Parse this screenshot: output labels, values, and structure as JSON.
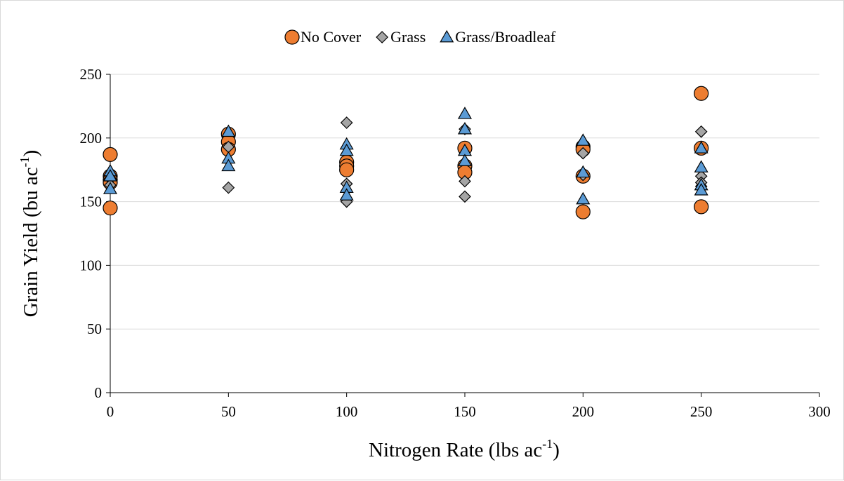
{
  "chart_data": {
    "type": "scatter",
    "title": "",
    "xlabel": "Nitrogen Rate (lbs ac",
    "xlabel_sup": "-1",
    "xlabel_end": ")",
    "ylabel": "Grain Yield (bu ac",
    "ylabel_sup": "-1",
    "ylabel_end": ")",
    "xlim": [
      0,
      300
    ],
    "ylim": [
      0,
      250
    ],
    "xticks": [
      0,
      50,
      100,
      150,
      200,
      250,
      300
    ],
    "yticks": [
      0,
      50,
      100,
      150,
      200,
      250
    ],
    "grid": "horizontal",
    "legend": "top-center",
    "series": [
      {
        "name": "No Cover",
        "marker": "circle",
        "color": "#ED7D31",
        "points": [
          [
            0,
            187
          ],
          [
            0,
            170
          ],
          [
            0,
            167
          ],
          [
            0,
            165
          ],
          [
            0,
            145
          ],
          [
            50,
            203
          ],
          [
            50,
            197
          ],
          [
            50,
            191
          ],
          [
            100,
            181
          ],
          [
            100,
            178
          ],
          [
            100,
            175
          ],
          [
            150,
            192
          ],
          [
            150,
            178
          ],
          [
            150,
            173
          ],
          [
            200,
            193
          ],
          [
            200,
            191
          ],
          [
            200,
            170
          ],
          [
            200,
            142
          ],
          [
            250,
            235
          ],
          [
            250,
            192
          ],
          [
            250,
            146
          ]
        ]
      },
      {
        "name": "Grass",
        "marker": "diamond",
        "color": "#A5A5A5",
        "points": [
          [
            0,
            171
          ],
          [
            0,
            168
          ],
          [
            0,
            163
          ],
          [
            50,
            193
          ],
          [
            50,
            161
          ],
          [
            100,
            212
          ],
          [
            100,
            164
          ],
          [
            100,
            150
          ],
          [
            150,
            207
          ],
          [
            150,
            166
          ],
          [
            150,
            154
          ],
          [
            200,
            188
          ],
          [
            200,
            171
          ],
          [
            250,
            205
          ],
          [
            250,
            170
          ],
          [
            250,
            165
          ],
          [
            250,
            162
          ]
        ]
      },
      {
        "name": "Grass/Broadleaf",
        "marker": "triangle",
        "color": "#5B9BD5",
        "points": [
          [
            0,
            174
          ],
          [
            0,
            170
          ],
          [
            0,
            160
          ],
          [
            50,
            205
          ],
          [
            50,
            184
          ],
          [
            50,
            178
          ],
          [
            100,
            195
          ],
          [
            100,
            190
          ],
          [
            100,
            161
          ],
          [
            100,
            155
          ],
          [
            150,
            219
          ],
          [
            150,
            207
          ],
          [
            150,
            190
          ],
          [
            150,
            182
          ],
          [
            200,
            198
          ],
          [
            200,
            173
          ],
          [
            200,
            152
          ],
          [
            250,
            192
          ],
          [
            250,
            177
          ],
          [
            250,
            163
          ],
          [
            250,
            159
          ]
        ]
      }
    ]
  }
}
